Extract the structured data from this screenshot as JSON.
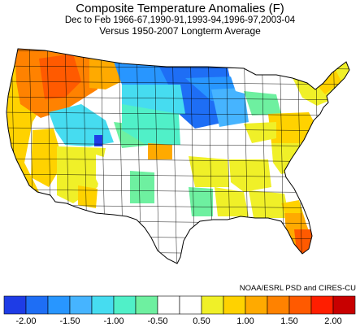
{
  "title": "Composite Temperature Anomalies (F)",
  "subtitle": "Dec to Feb  1966-67,1990-91,1993-94,1996-97,2003-04",
  "reference": "Versus 1950-2007 Longterm Average",
  "credit": "NOAA/ESRL PSD and CIRES-CU",
  "legend": {
    "colors": [
      "#1e3ce6",
      "#1e6ef5",
      "#2896ff",
      "#46b4ff",
      "#46dcf0",
      "#50f0c8",
      "#6ef0a0",
      "#ffffff",
      "#ffffff",
      "#f0f028",
      "#ffd200",
      "#ffaa00",
      "#ff8200",
      "#ff5a00",
      "#ff1e00",
      "#c80000"
    ],
    "tick_labels": [
      "-2.00",
      "-1.50",
      "-1.00",
      "-0.50",
      "0.50",
      "1.00",
      "1.50",
      "2.00"
    ]
  },
  "map_regions": [
    {
      "region": "Pacific Northwest / Northern Rockies",
      "anomaly_class": "1.00 to 1.50"
    },
    {
      "region": "Northern Plains / Upper Midwest",
      "anomaly_class": "-2.00 to -1.50"
    },
    {
      "region": "Great Basin / Central Rockies",
      "anomaly_class": "-1.00 to -0.50"
    },
    {
      "region": "Southern Florida",
      "anomaly_class": "1.50 to 2.00"
    },
    {
      "region": "Southeast / Mid-Atlantic / Northeast",
      "anomaly_class": "0.25 to 1.00"
    },
    {
      "region": "California / Desert Southwest",
      "anomaly_class": "0.25 to 0.75"
    }
  ]
}
